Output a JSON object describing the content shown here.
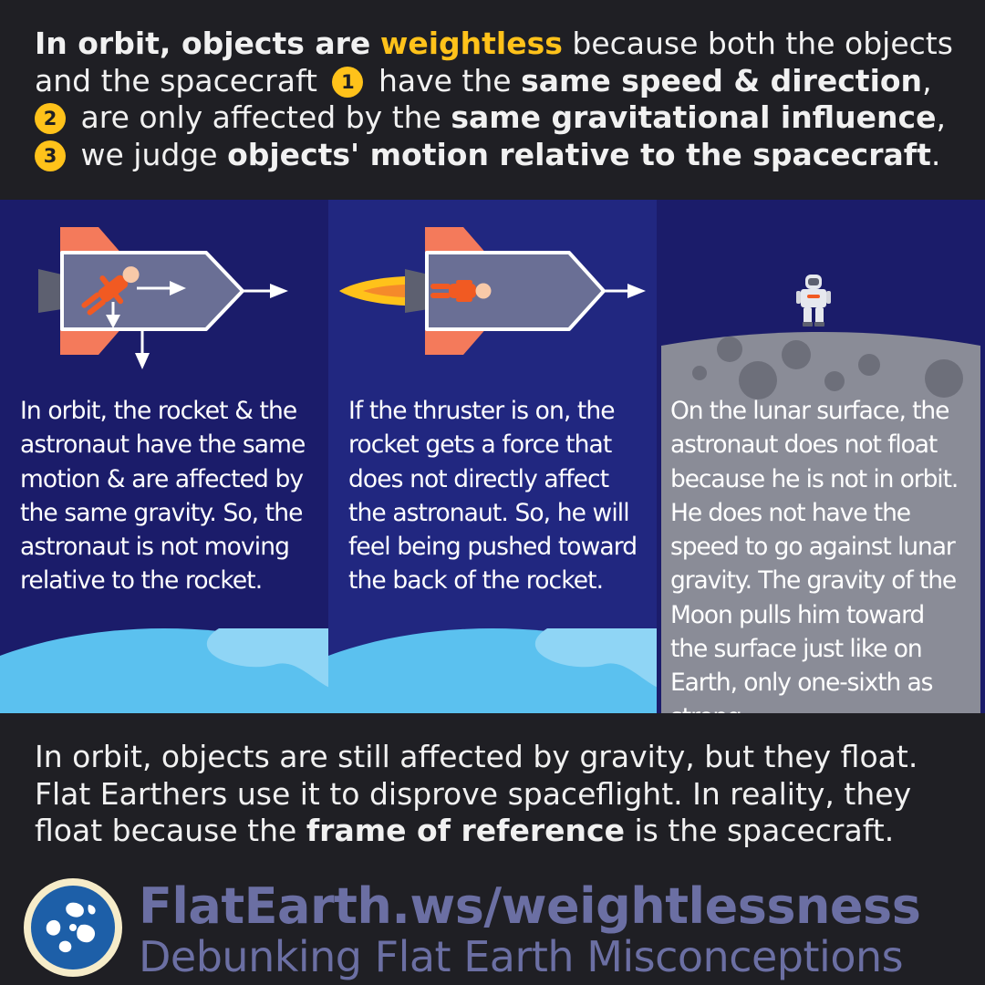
{
  "intro": {
    "l1_a": "In orbit, objects are",
    "l1_hl": "weightless",
    "l1_b": "because both the objects",
    "l2_a": "and the spacecraft",
    "l2_num": "1",
    "l2_b": "have the",
    "l2_bold": "same speed & direction",
    "l2_c": ",",
    "l3_num": "2",
    "l3_a": "are only affected by the",
    "l3_bold": "same gravitational influence",
    "l3_c": ",",
    "l4_num": "3",
    "l4_a": "we judge",
    "l4_bold": "objects' motion relative to the spacecraft",
    "l4_c": "."
  },
  "panels": [
    {
      "text": "In orbit, the rocket & the astronaut have the same motion & are affected by the same gravity. So, the astronaut is not moving relative to the rocket."
    },
    {
      "text": "If the thruster is on, the rocket gets a force that does not directly affect the astronaut. So, he will feel being pushed toward the back of the rocket."
    },
    {
      "text": "On the lunar surface, the astronaut does not float because he is not in orbit. He does not have the speed to go against lunar gravity. The gravity of the Moon pulls him toward the surface just like on Earth, only one-sixth as strong."
    }
  ],
  "conclusion": {
    "l1": "In orbit, objects are still affected by gravity, but they float.",
    "l2": "Flat Earthers use it to disprove spaceflight. In reality, they",
    "l3_a": "float because the",
    "l3_bold": "frame of reference",
    "l3_b": "is the spacecraft."
  },
  "footer": {
    "site": "FlatEarth.ws/weightlessness",
    "tagline": "Debunking Flat Earth Misconceptions"
  },
  "colors": {
    "background": "#1f1f24",
    "highlight": "#ffc21a",
    "panel_dark": "#1b1c6a",
    "panel_light": "#212780",
    "earth": "#5bc1ef",
    "moon": "#8a8c97",
    "footer_text": "#6b6fa3"
  }
}
